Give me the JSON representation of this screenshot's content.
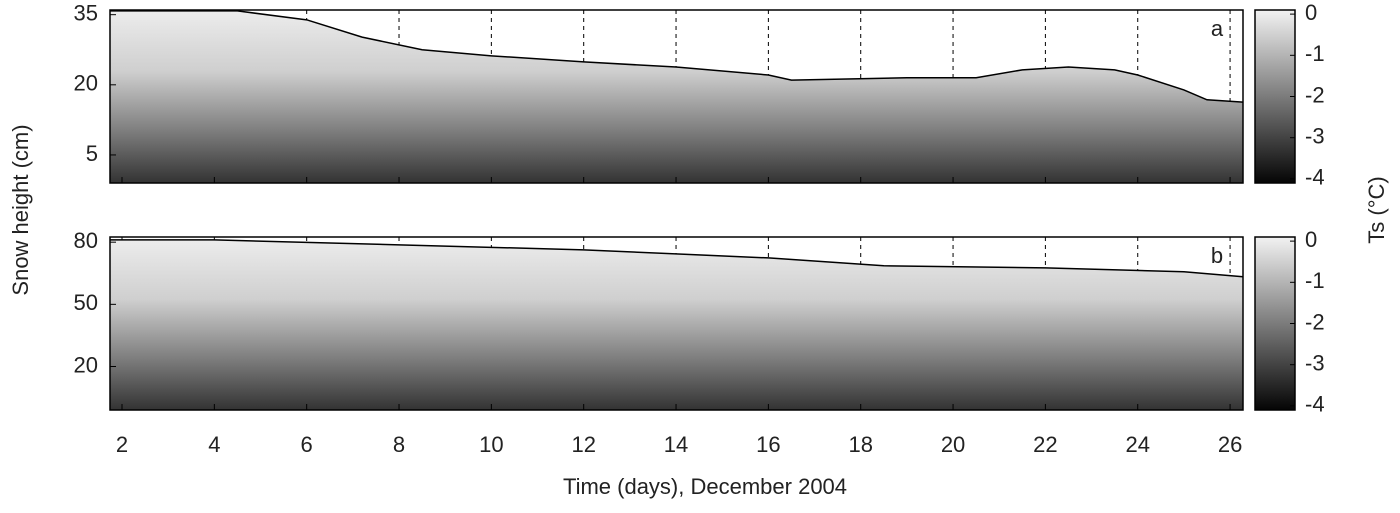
{
  "chart_data": [
    {
      "type": "contour",
      "panel_label": "a",
      "ylabel": "Snow height (cm)",
      "colorbar_label": "Ts (°C)",
      "xlim": [
        1.74,
        26.28
      ],
      "ylim": [
        -1,
        36
      ],
      "yticks": [
        5,
        20,
        35
      ],
      "grid": true,
      "snow_surface": {
        "x": [
          1.74,
          4.5,
          6,
          7.2,
          8.5,
          10,
          12,
          14,
          16,
          16.5,
          19,
          20.5,
          21.5,
          22.5,
          23.5,
          24,
          25,
          25.5,
          26.28
        ],
        "values": [
          35.8,
          35.8,
          33.9,
          30.2,
          27.5,
          26.2,
          24.9,
          23.8,
          22.1,
          21.0,
          21.5,
          21.5,
          23.2,
          23.8,
          23.2,
          22.1,
          18.9,
          16.8,
          16.3
        ]
      },
      "colorbar": {
        "clim": [
          -4.1,
          0.1
        ],
        "ticks": [
          0,
          -1,
          -2,
          -3,
          -4
        ]
      }
    },
    {
      "type": "contour",
      "panel_label": "b",
      "xlabel": "Time (days), December 2004",
      "xlim": [
        1.74,
        26.28
      ],
      "xticks": [
        2,
        4,
        6,
        8,
        10,
        12,
        14,
        16,
        18,
        20,
        22,
        24,
        26
      ],
      "ylim": [
        -1,
        82.5
      ],
      "yticks": [
        20,
        50,
        80
      ],
      "grid": true,
      "snow_surface": {
        "x": [
          1.74,
          4,
          8,
          12,
          16,
          18.5,
          22,
          25,
          26.28
        ],
        "values": [
          81.1,
          81.1,
          78.7,
          76.3,
          72.4,
          68.6,
          67.6,
          65.7,
          63.3
        ]
      },
      "colorbar": {
        "clim": [
          -4.1,
          0.1
        ],
        "ticks": [
          0,
          -1,
          -2,
          -3,
          -4
        ]
      }
    }
  ]
}
